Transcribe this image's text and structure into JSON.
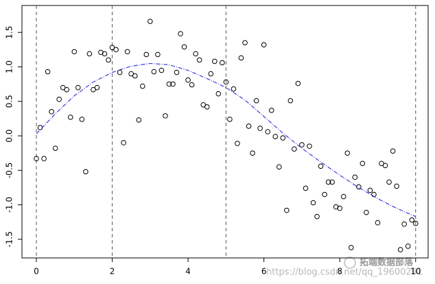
{
  "chart_data": {
    "type": "scatter",
    "xlim": [
      -0.38,
      10.33
    ],
    "ylim": [
      -1.77,
      1.89
    ],
    "xticks": [
      0,
      2,
      4,
      6,
      8,
      10
    ],
    "yticks": [
      -1.5,
      {
        "value": -1.0,
        "label": "-1.0"
      },
      -0.5,
      {
        "value": 0.0,
        "label": "0.0"
      },
      0.5,
      {
        "value": 1.0,
        "label": "1.0"
      },
      1.5
    ],
    "vlines": [
      0,
      2,
      5,
      10
    ],
    "series": [
      {
        "type": "scatter",
        "color": "#000000",
        "x": [
          0,
          0.1,
          0.2,
          0.3,
          0.4,
          0.5,
          0.6,
          0.7,
          0.8,
          0.9,
          1,
          1.1,
          1.2,
          1.3,
          1.4,
          1.5,
          1.6,
          1.7,
          1.8,
          1.9,
          2,
          2.1,
          2.2,
          2.3,
          2.4,
          2.5,
          2.6,
          2.7,
          2.8,
          2.9,
          3,
          3.1,
          3.2,
          3.3,
          3.4,
          3.5,
          3.6,
          3.7,
          3.8,
          3.9,
          4,
          4.1,
          4.2,
          4.3,
          4.4,
          4.5,
          4.6,
          4.7,
          4.8,
          4.9,
          5,
          5.1,
          5.2,
          5.3,
          5.4,
          5.5,
          5.6,
          5.7,
          5.8,
          5.9,
          6,
          6.1,
          6.2,
          6.3,
          6.4,
          6.5,
          6.6,
          6.7,
          6.8,
          6.9,
          7,
          7.1,
          7.2,
          7.3,
          7.4,
          7.5,
          7.6,
          7.7,
          7.8,
          7.9,
          8,
          8.1,
          8.2,
          8.3,
          8.4,
          8.5,
          8.6,
          8.7,
          8.8,
          8.9,
          9,
          9.1,
          9.2,
          9.3,
          9.4,
          9.5,
          9.6,
          9.7,
          9.8,
          9.9,
          10
        ],
        "values": [
          -0.33,
          0.12,
          -0.33,
          0.93,
          0.35,
          -0.18,
          0.53,
          0.7,
          0.67,
          0.27,
          1.22,
          0.7,
          0.24,
          -0.52,
          1.19,
          0.67,
          0.7,
          1.21,
          1.19,
          1.1,
          1.28,
          1.25,
          0.92,
          -0.1,
          1.22,
          0.9,
          0.87,
          0.23,
          0.72,
          1.18,
          1.66,
          0.93,
          1.18,
          0.95,
          0.29,
          0.75,
          0.75,
          0.92,
          1.48,
          1.29,
          0.81,
          0.74,
          1.19,
          1.1,
          0.45,
          0.42,
          0.9,
          1.08,
          0.61,
          1.06,
          0.78,
          0.24,
          0.68,
          -0.11,
          1.13,
          1.35,
          0.14,
          -0.25,
          0.51,
          0.11,
          1.32,
          0.06,
          0.37,
          -0.01,
          -0.45,
          -0.03,
          -1.08,
          0.51,
          -0.19,
          0.76,
          -0.13,
          -0.76,
          -0.15,
          -0.97,
          -1.17,
          -0.44,
          -0.85,
          -0.67,
          -0.67,
          -1.03,
          -1.05,
          -0.88,
          -0.25,
          -1.62,
          -0.6,
          -0.74,
          -0.4,
          -1.11,
          -0.79,
          -0.85,
          -1.26,
          -0.4,
          -0.43,
          -0.67,
          -0.22,
          -0.73,
          -1.65,
          -1.28,
          -1.6,
          -1.22,
          -1.27
        ]
      },
      {
        "type": "line",
        "color": "#3a3ae0",
        "x": [
          0,
          0.5,
          1,
          1.5,
          2,
          2.5,
          3,
          3.5,
          4,
          4.5,
          5,
          5.5,
          6,
          6.5,
          7,
          7.5,
          8,
          8.5,
          9,
          9.5,
          10
        ],
        "values": [
          0.03,
          0.32,
          0.58,
          0.78,
          0.92,
          1.01,
          1.05,
          1.03,
          0.95,
          0.83,
          0.7,
          0.52,
          0.28,
          0.04,
          -0.18,
          -0.38,
          -0.57,
          -0.75,
          -0.91,
          -1.05,
          -1.17
        ]
      }
    ],
    "watermark": {
      "url": "https://blog.csdn.net/qq_19600291",
      "brand": "拓端数据部落"
    }
  }
}
